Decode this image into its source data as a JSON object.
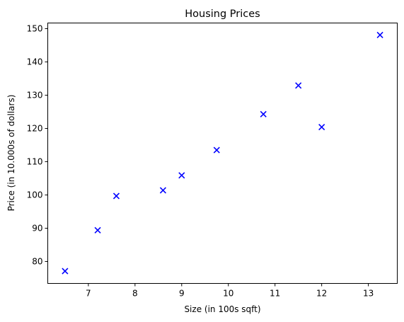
{
  "chart_data": {
    "type": "scatter",
    "title": "Housing Prices",
    "xlabel": "Size (in 100s sqft)",
    "ylabel": "Price (in 10.000s of dollars)",
    "xlim": [
      6.13,
      13.62
    ],
    "ylim": [
      73.4,
      151.7
    ],
    "xticks": [
      7,
      8,
      9,
      10,
      11,
      12,
      13
    ],
    "yticks": [
      80,
      90,
      100,
      110,
      120,
      130,
      140,
      150
    ],
    "grid": false,
    "marker": "x",
    "color": "#0000ff",
    "points": [
      {
        "x": 6.5,
        "y": 77.1
      },
      {
        "x": 7.2,
        "y": 89.4
      },
      {
        "x": 7.6,
        "y": 99.7
      },
      {
        "x": 8.6,
        "y": 101.4
      },
      {
        "x": 9.0,
        "y": 105.9
      },
      {
        "x": 9.75,
        "y": 113.5
      },
      {
        "x": 10.75,
        "y": 124.3
      },
      {
        "x": 11.5,
        "y": 132.9
      },
      {
        "x": 12.0,
        "y": 120.4
      },
      {
        "x": 13.25,
        "y": 148.1
      }
    ]
  }
}
